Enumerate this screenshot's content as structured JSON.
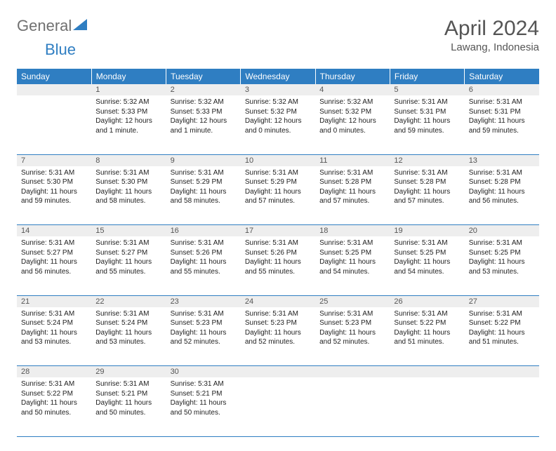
{
  "logo": {
    "part1": "General",
    "part2": "Blue",
    "tri_color": "#2f7ec2"
  },
  "title": "April 2024",
  "location": "Lawang, Indonesia",
  "header_bg": "#2f7ec2",
  "header_fg": "#ffffff",
  "daynum_bg": "#eeeeee",
  "border_color": "#2f7ec2",
  "weekdays": [
    "Sunday",
    "Monday",
    "Tuesday",
    "Wednesday",
    "Thursday",
    "Friday",
    "Saturday"
  ],
  "weeks": [
    {
      "nums": [
        "",
        "1",
        "2",
        "3",
        "4",
        "5",
        "6"
      ],
      "cells": [
        null,
        {
          "sunrise": "Sunrise: 5:32 AM",
          "sunset": "Sunset: 5:33 PM",
          "day": "Daylight: 12 hours and 1 minute."
        },
        {
          "sunrise": "Sunrise: 5:32 AM",
          "sunset": "Sunset: 5:33 PM",
          "day": "Daylight: 12 hours and 1 minute."
        },
        {
          "sunrise": "Sunrise: 5:32 AM",
          "sunset": "Sunset: 5:32 PM",
          "day": "Daylight: 12 hours and 0 minutes."
        },
        {
          "sunrise": "Sunrise: 5:32 AM",
          "sunset": "Sunset: 5:32 PM",
          "day": "Daylight: 12 hours and 0 minutes."
        },
        {
          "sunrise": "Sunrise: 5:31 AM",
          "sunset": "Sunset: 5:31 PM",
          "day": "Daylight: 11 hours and 59 minutes."
        },
        {
          "sunrise": "Sunrise: 5:31 AM",
          "sunset": "Sunset: 5:31 PM",
          "day": "Daylight: 11 hours and 59 minutes."
        }
      ]
    },
    {
      "nums": [
        "7",
        "8",
        "9",
        "10",
        "11",
        "12",
        "13"
      ],
      "cells": [
        {
          "sunrise": "Sunrise: 5:31 AM",
          "sunset": "Sunset: 5:30 PM",
          "day": "Daylight: 11 hours and 59 minutes."
        },
        {
          "sunrise": "Sunrise: 5:31 AM",
          "sunset": "Sunset: 5:30 PM",
          "day": "Daylight: 11 hours and 58 minutes."
        },
        {
          "sunrise": "Sunrise: 5:31 AM",
          "sunset": "Sunset: 5:29 PM",
          "day": "Daylight: 11 hours and 58 minutes."
        },
        {
          "sunrise": "Sunrise: 5:31 AM",
          "sunset": "Sunset: 5:29 PM",
          "day": "Daylight: 11 hours and 57 minutes."
        },
        {
          "sunrise": "Sunrise: 5:31 AM",
          "sunset": "Sunset: 5:28 PM",
          "day": "Daylight: 11 hours and 57 minutes."
        },
        {
          "sunrise": "Sunrise: 5:31 AM",
          "sunset": "Sunset: 5:28 PM",
          "day": "Daylight: 11 hours and 57 minutes."
        },
        {
          "sunrise": "Sunrise: 5:31 AM",
          "sunset": "Sunset: 5:28 PM",
          "day": "Daylight: 11 hours and 56 minutes."
        }
      ]
    },
    {
      "nums": [
        "14",
        "15",
        "16",
        "17",
        "18",
        "19",
        "20"
      ],
      "cells": [
        {
          "sunrise": "Sunrise: 5:31 AM",
          "sunset": "Sunset: 5:27 PM",
          "day": "Daylight: 11 hours and 56 minutes."
        },
        {
          "sunrise": "Sunrise: 5:31 AM",
          "sunset": "Sunset: 5:27 PM",
          "day": "Daylight: 11 hours and 55 minutes."
        },
        {
          "sunrise": "Sunrise: 5:31 AM",
          "sunset": "Sunset: 5:26 PM",
          "day": "Daylight: 11 hours and 55 minutes."
        },
        {
          "sunrise": "Sunrise: 5:31 AM",
          "sunset": "Sunset: 5:26 PM",
          "day": "Daylight: 11 hours and 55 minutes."
        },
        {
          "sunrise": "Sunrise: 5:31 AM",
          "sunset": "Sunset: 5:25 PM",
          "day": "Daylight: 11 hours and 54 minutes."
        },
        {
          "sunrise": "Sunrise: 5:31 AM",
          "sunset": "Sunset: 5:25 PM",
          "day": "Daylight: 11 hours and 54 minutes."
        },
        {
          "sunrise": "Sunrise: 5:31 AM",
          "sunset": "Sunset: 5:25 PM",
          "day": "Daylight: 11 hours and 53 minutes."
        }
      ]
    },
    {
      "nums": [
        "21",
        "22",
        "23",
        "24",
        "25",
        "26",
        "27"
      ],
      "cells": [
        {
          "sunrise": "Sunrise: 5:31 AM",
          "sunset": "Sunset: 5:24 PM",
          "day": "Daylight: 11 hours and 53 minutes."
        },
        {
          "sunrise": "Sunrise: 5:31 AM",
          "sunset": "Sunset: 5:24 PM",
          "day": "Daylight: 11 hours and 53 minutes."
        },
        {
          "sunrise": "Sunrise: 5:31 AM",
          "sunset": "Sunset: 5:23 PM",
          "day": "Daylight: 11 hours and 52 minutes."
        },
        {
          "sunrise": "Sunrise: 5:31 AM",
          "sunset": "Sunset: 5:23 PM",
          "day": "Daylight: 11 hours and 52 minutes."
        },
        {
          "sunrise": "Sunrise: 5:31 AM",
          "sunset": "Sunset: 5:23 PM",
          "day": "Daylight: 11 hours and 52 minutes."
        },
        {
          "sunrise": "Sunrise: 5:31 AM",
          "sunset": "Sunset: 5:22 PM",
          "day": "Daylight: 11 hours and 51 minutes."
        },
        {
          "sunrise": "Sunrise: 5:31 AM",
          "sunset": "Sunset: 5:22 PM",
          "day": "Daylight: 11 hours and 51 minutes."
        }
      ]
    },
    {
      "nums": [
        "28",
        "29",
        "30",
        "",
        "",
        "",
        ""
      ],
      "cells": [
        {
          "sunrise": "Sunrise: 5:31 AM",
          "sunset": "Sunset: 5:22 PM",
          "day": "Daylight: 11 hours and 50 minutes."
        },
        {
          "sunrise": "Sunrise: 5:31 AM",
          "sunset": "Sunset: 5:21 PM",
          "day": "Daylight: 11 hours and 50 minutes."
        },
        {
          "sunrise": "Sunrise: 5:31 AM",
          "sunset": "Sunset: 5:21 PM",
          "day": "Daylight: 11 hours and 50 minutes."
        },
        null,
        null,
        null,
        null
      ]
    }
  ]
}
